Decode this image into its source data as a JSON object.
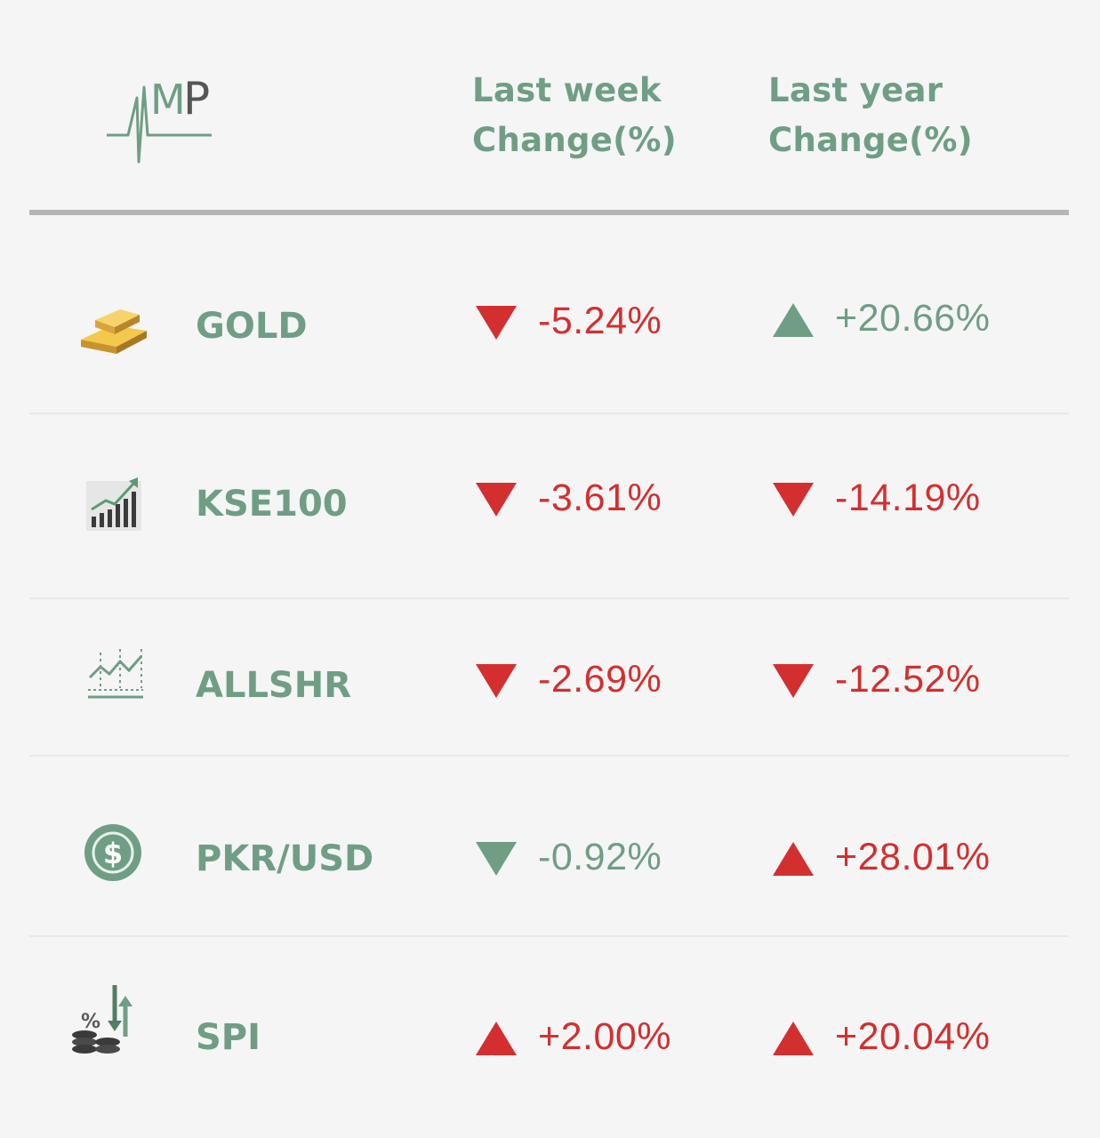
{
  "header": {
    "logo_text": "AMP",
    "col_week": [
      "Last week",
      "Change(%)"
    ],
    "col_year": [
      "Last year",
      "Change(%)"
    ]
  },
  "colors": {
    "accent_green": "#6f9e84",
    "negative_red": "#d32f2f",
    "background": "#f5f5f5",
    "divider": "#b5b5b5"
  },
  "rows": [
    {
      "name": "GOLD",
      "icon": "gold-bar-icon",
      "week": {
        "value": "-5.24%",
        "direction": "down",
        "color": "#d32f2f"
      },
      "year": {
        "value": "+20.66%",
        "direction": "up",
        "color": "#6f9e84"
      }
    },
    {
      "name": "KSE100",
      "icon": "rising-bar-chart-icon",
      "week": {
        "value": "-3.61%",
        "direction": "down",
        "color": "#d32f2f"
      },
      "year": {
        "value": "-14.19%",
        "direction": "down",
        "color": "#d32f2f"
      }
    },
    {
      "name": "ALLSHR",
      "icon": "line-chart-icon",
      "week": {
        "value": "-2.69%",
        "direction": "down",
        "color": "#d32f2f"
      },
      "year": {
        "value": "-12.52%",
        "direction": "down",
        "color": "#d32f2f"
      }
    },
    {
      "name": "PKR/USD",
      "icon": "dollar-coin-icon",
      "week": {
        "value": "-0.92%",
        "direction": "down",
        "color": "#6f9e84"
      },
      "year": {
        "value": "+28.01%",
        "direction": "up",
        "color": "#d32f2f"
      }
    },
    {
      "name": "SPI",
      "icon": "inflation-coins-icon",
      "week": {
        "value": "+2.00%",
        "direction": "up",
        "color": "#d32f2f"
      },
      "year": {
        "value": "+20.04%",
        "direction": "up",
        "color": "#d32f2f"
      }
    }
  ],
  "chart_data": {
    "type": "table",
    "columns": [
      "Last week Change(%)",
      "Last year Change(%)"
    ],
    "categories": [
      "GOLD",
      "KSE100",
      "ALLSHR",
      "PKR/USD",
      "SPI"
    ],
    "series": [
      {
        "name": "Last week Change(%)",
        "values": [
          -5.24,
          -3.61,
          -2.69,
          -0.92,
          2.0
        ]
      },
      {
        "name": "Last year Change(%)",
        "values": [
          20.66,
          -14.19,
          -12.52,
          28.01,
          20.04
        ]
      }
    ]
  }
}
